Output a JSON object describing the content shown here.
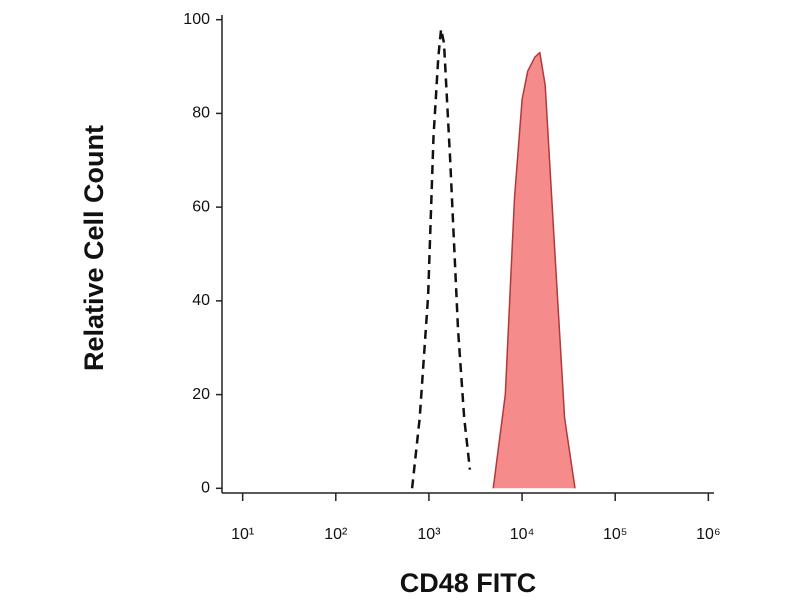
{
  "chart_data": {
    "type": "histogram-overlay",
    "x_label": "CD48 FITC",
    "y_label": "Relative Cell Count",
    "xscale": "log",
    "xlim": [
      6,
      1150000
    ],
    "ylim": [
      -1,
      101
    ],
    "xticks": [
      {
        "value": 10,
        "label": "10¹"
      },
      {
        "value": 100,
        "label": "10²"
      },
      {
        "value": 1000,
        "label": "10³"
      },
      {
        "value": 10000,
        "label": "10⁴"
      },
      {
        "value": 100000,
        "label": "10⁵"
      },
      {
        "value": 1000000,
        "label": "10⁶"
      }
    ],
    "yticks": [
      0,
      20,
      40,
      60,
      80,
      100
    ],
    "series": [
      {
        "color": "#111111",
        "dash": true,
        "filled": false,
        "x": [
          660,
          795,
          980,
          1120,
          1260,
          1350,
          1450,
          1690,
          2050,
          2390,
          2750
        ],
        "values": [
          0,
          15,
          41,
          75,
          92,
          98,
          95,
          70,
          34,
          15,
          4
        ]
      },
      {
        "color": "#b03a3a",
        "fill_color": "#f58b8b",
        "dash": false,
        "filled": true,
        "x": [
          4900,
          6600,
          8300,
          10000,
          11500,
          13700,
          15500,
          17700,
          22400,
          28600,
          37000
        ],
        "values": [
          0,
          20,
          62,
          83,
          89,
          92,
          93,
          86,
          51,
          15,
          0
        ]
      }
    ]
  }
}
